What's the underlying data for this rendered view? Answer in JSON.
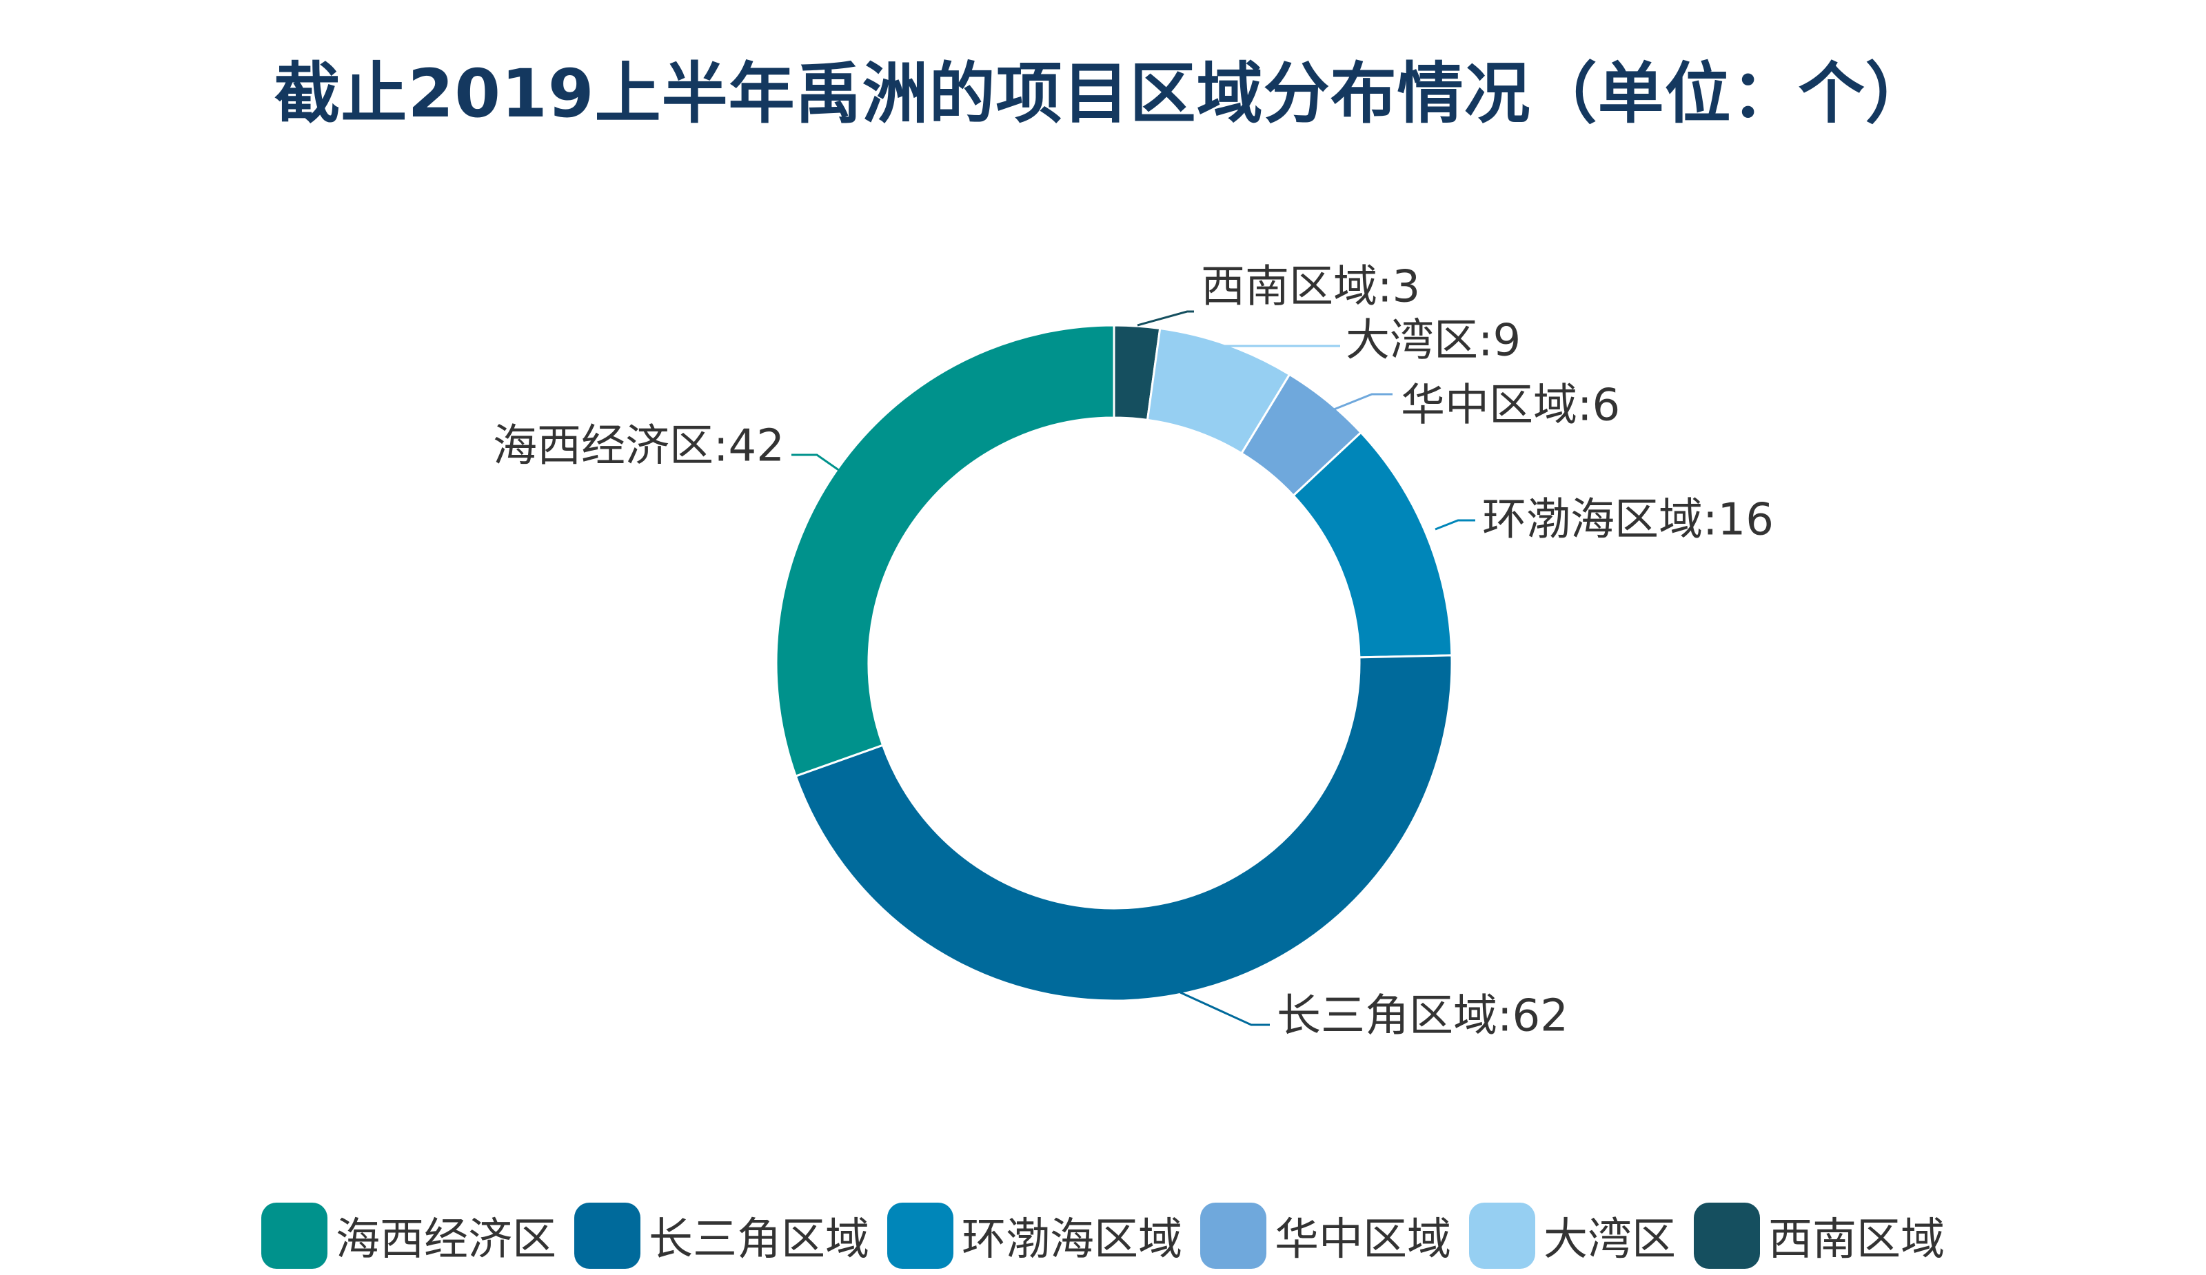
{
  "chart_data": {
    "type": "pie",
    "variant": "donut",
    "title": "截止2019上半年禹洲的项目区域分布情况（单位：个）",
    "categories": [
      "海西经济区",
      "长三角区域",
      "环渤海区域",
      "华中区域",
      "大湾区",
      "西南区域"
    ],
    "values": [
      42,
      62,
      16,
      6,
      9,
      3
    ],
    "data_labels": [
      "海西经济区:42",
      "长三角区域:62",
      "环渤海区域:16",
      "华中区域:6",
      "大湾区:9",
      "西南区域:3"
    ],
    "colors": [
      "#00928c",
      "#006a9b",
      "#0086b9",
      "#6fa8dc",
      "#96cff2",
      "#154f5f"
    ],
    "legend": {
      "position": "bottom"
    }
  }
}
